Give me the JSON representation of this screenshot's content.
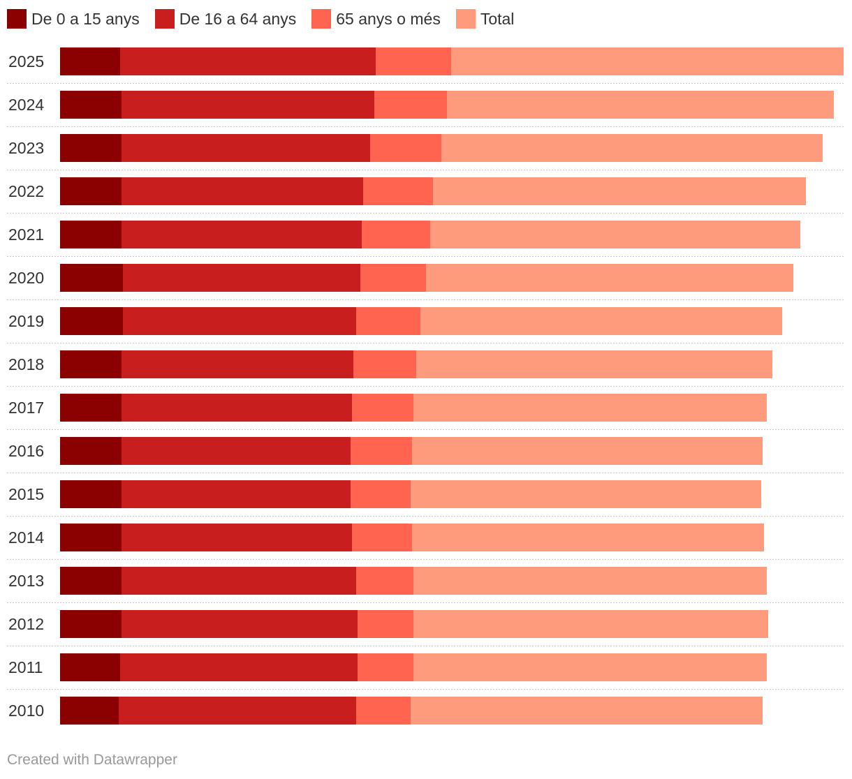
{
  "chart_data": {
    "type": "bar",
    "orientation": "horizontal",
    "stacked": true,
    "title": "",
    "xlabel": "",
    "ylabel": "",
    "legend_position": "top-left",
    "grid": false,
    "categories": [
      "2025",
      "2024",
      "2023",
      "2022",
      "2021",
      "2020",
      "2019",
      "2018",
      "2017",
      "2016",
      "2015",
      "2014",
      "2013",
      "2012",
      "2011",
      "2010"
    ],
    "series": [
      {
        "name": "De 0 a 15 anys",
        "color": "#8b0000",
        "values": [
          86,
          88,
          88,
          88,
          88,
          90,
          90,
          88,
          88,
          88,
          88,
          88,
          88,
          88,
          86,
          84
        ]
      },
      {
        "name": "De 16 a 64 anys",
        "color": "#c81e1e",
        "values": [
          366,
          362,
          356,
          346,
          344,
          340,
          334,
          332,
          330,
          328,
          328,
          330,
          336,
          338,
          340,
          340
        ]
      },
      {
        "name": "65 anys o més",
        "color": "#ff6450",
        "values": [
          108,
          104,
          102,
          100,
          98,
          94,
          92,
          90,
          88,
          88,
          86,
          86,
          82,
          80,
          80,
          78
        ]
      },
      {
        "name": "Total",
        "color": "#ff9b7d",
        "values": [
          562,
          554,
          546,
          534,
          530,
          526,
          518,
          510,
          506,
          502,
          502,
          504,
          506,
          508,
          506,
          504
        ]
      }
    ],
    "xlim": [
      0,
      1122
    ]
  },
  "footer": {
    "credit": "Created with Datawrapper"
  }
}
